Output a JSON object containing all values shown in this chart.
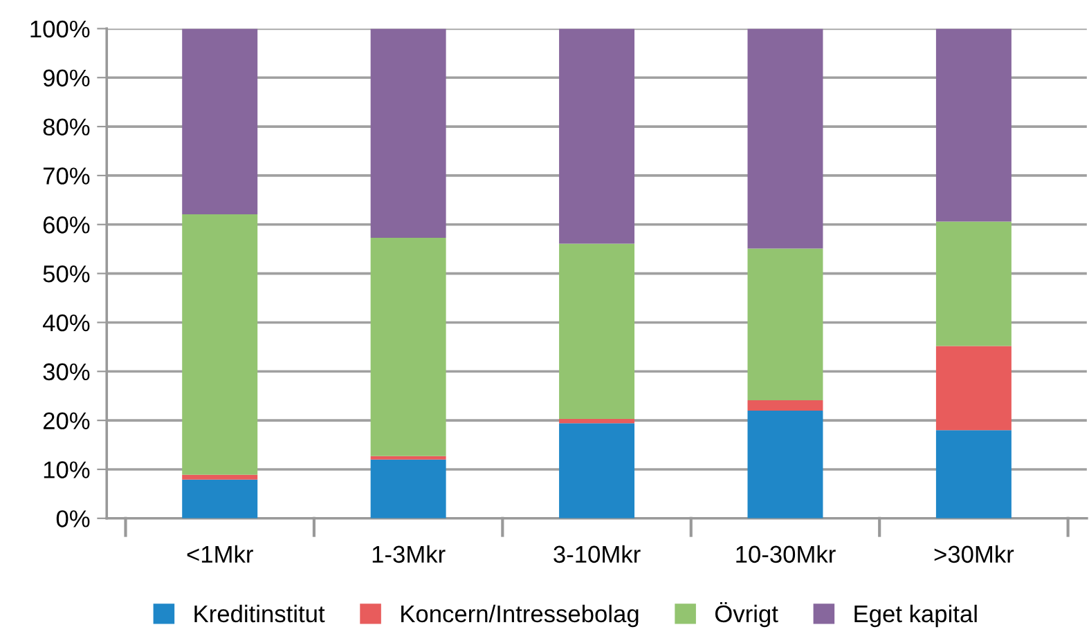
{
  "chart_data": {
    "type": "bar",
    "stacked": true,
    "categories": [
      "<1Mkr",
      "1-3Mkr",
      "3-10Mkr",
      "10-30Mkr",
      ">30Mkr"
    ],
    "series": [
      {
        "name": "Kreditinstitut",
        "color": "#1f87c8",
        "values": [
          7.9,
          12.0,
          19.4,
          22.0,
          18.0
        ]
      },
      {
        "name": "Koncern/Intressebolag",
        "color": "#e85c5c",
        "values": [
          1.0,
          0.7,
          0.9,
          2.1,
          17.2
        ]
      },
      {
        "name": "Övrigt",
        "color": "#93c470",
        "values": [
          53.2,
          44.6,
          35.8,
          31.0,
          25.4
        ]
      },
      {
        "name": "Eget kapital",
        "color": "#87679d",
        "values": [
          37.9,
          42.7,
          43.9,
          44.9,
          39.4
        ]
      }
    ],
    "ylim": [
      0,
      100
    ],
    "yticks": [
      {
        "value": 0,
        "label": "0%"
      },
      {
        "value": 10,
        "label": "10%"
      },
      {
        "value": 20,
        "label": "20%"
      },
      {
        "value": 30,
        "label": "30%"
      },
      {
        "value": 40,
        "label": "40%"
      },
      {
        "value": 50,
        "label": "50%"
      },
      {
        "value": 60,
        "label": "60%"
      },
      {
        "value": 70,
        "label": "70%"
      },
      {
        "value": 80,
        "label": "80%"
      },
      {
        "value": 90,
        "label": "90%"
      },
      {
        "value": 100,
        "label": "100%"
      }
    ],
    "grid": "y",
    "legend": "bottom"
  }
}
